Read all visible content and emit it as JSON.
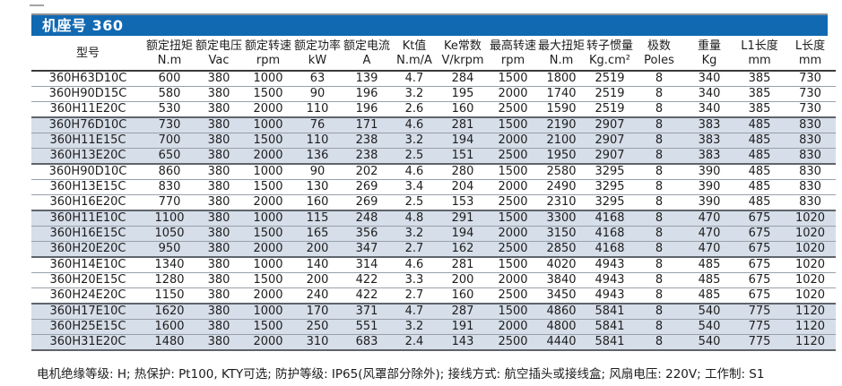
{
  "title": "机座号 360",
  "colors": {
    "header_bar": "#1169b2",
    "stripe": "#d6dee9",
    "row_border": "#98a0aa",
    "group_border": "#5f646b"
  },
  "table": {
    "columns": [
      {
        "name": "型号",
        "unit": ""
      },
      {
        "name": "额定扭矩",
        "unit": "N.m"
      },
      {
        "name": "额定电压",
        "unit": "Vac"
      },
      {
        "name": "额定转速",
        "unit": "rpm"
      },
      {
        "name": "额定功率",
        "unit": "kW"
      },
      {
        "name": "额定电流",
        "unit": "A"
      },
      {
        "name": "Kt值",
        "unit": "N.m/A"
      },
      {
        "name": "Ke常数",
        "unit": "V/krpm"
      },
      {
        "name": "最高转速",
        "unit": "rpm"
      },
      {
        "name": "最大扭矩",
        "unit": "N.m"
      },
      {
        "name": "转子惯量",
        "unit": "Kg.cm²"
      },
      {
        "name": "极数",
        "unit": "Poles"
      },
      {
        "name": "重量",
        "unit": "Kg"
      },
      {
        "name": "L1长度",
        "unit": "mm"
      },
      {
        "name": "L长度",
        "unit": "mm"
      }
    ],
    "rows": [
      [
        "360H63D10C",
        600,
        380,
        1000,
        63,
        139,
        4.7,
        284,
        1500,
        1800,
        2519,
        8,
        340,
        385,
        730
      ],
      [
        "360H90D15C",
        580,
        380,
        1500,
        90,
        196,
        3.2,
        195,
        2000,
        1740,
        2519,
        8,
        340,
        385,
        730
      ],
      [
        "360H11E20C",
        530,
        380,
        2000,
        110,
        196,
        2.6,
        160,
        2500,
        1590,
        2519,
        8,
        340,
        385,
        730
      ],
      [
        "360H76D10C",
        730,
        380,
        1000,
        76,
        171,
        4.6,
        281,
        1500,
        2190,
        2907,
        8,
        383,
        485,
        830
      ],
      [
        "360H11E15C",
        700,
        380,
        1500,
        110,
        238,
        3.2,
        194,
        2000,
        2100,
        2907,
        8,
        383,
        485,
        830
      ],
      [
        "360H13E20C",
        650,
        380,
        2000,
        136,
        238,
        2.5,
        151,
        2500,
        1950,
        2907,
        8,
        383,
        485,
        830
      ],
      [
        "360H90D10C",
        860,
        380,
        1000,
        90,
        202,
        4.6,
        280,
        1500,
        2580,
        3295,
        8,
        390,
        485,
        830
      ],
      [
        "360H13E15C",
        830,
        380,
        1500,
        130,
        269,
        3.4,
        204,
        2000,
        2490,
        3295,
        8,
        390,
        485,
        830
      ],
      [
        "360H16E20C",
        770,
        380,
        2000,
        160,
        269,
        2.5,
        153,
        2500,
        2310,
        3295,
        8,
        390,
        485,
        830
      ],
      [
        "360H11E10C",
        1100,
        380,
        1000,
        115,
        248,
        4.8,
        291,
        1500,
        3300,
        4168,
        8,
        470,
        675,
        1020
      ],
      [
        "360H16E15C",
        1050,
        380,
        1500,
        165,
        356,
        3.2,
        194,
        2000,
        3150,
        4168,
        8,
        470,
        675,
        1020
      ],
      [
        "360H20E20C",
        950,
        380,
        2000,
        200,
        347,
        2.7,
        162,
        2500,
        2850,
        4168,
        8,
        470,
        675,
        1020
      ],
      [
        "360H14E10C",
        1340,
        380,
        1000,
        140,
        314,
        4.6,
        281,
        1500,
        4020,
        4943,
        8,
        485,
        675,
        1020
      ],
      [
        "360H20E15C",
        1280,
        380,
        1500,
        200,
        422,
        3.3,
        200,
        2000,
        3840,
        4943,
        8,
        485,
        675,
        1020
      ],
      [
        "360H24E20C",
        1150,
        380,
        2000,
        240,
        422,
        2.7,
        160,
        2500,
        3450,
        4943,
        8,
        485,
        675,
        1020
      ],
      [
        "360H17E10C",
        1620,
        380,
        1000,
        170,
        371,
        4.7,
        287,
        1500,
        4860,
        5841,
        8,
        540,
        775,
        1120
      ],
      [
        "360H25E15C",
        1600,
        380,
        1500,
        250,
        551,
        3.2,
        191,
        2000,
        4800,
        5841,
        8,
        540,
        775,
        1120
      ],
      [
        "360H31E20C",
        1480,
        380,
        2000,
        310,
        683,
        2.4,
        143,
        2500,
        4440,
        5841,
        8,
        540,
        775,
        1120
      ]
    ]
  },
  "footer": "电机绝缘等级: H;  热保护: Pt100, KTY可选;  防护等级: IP65(风罩部分除外);  接线方式: 航空插头或接线盒;  风扇电压: 220V;  工作制: S1"
}
